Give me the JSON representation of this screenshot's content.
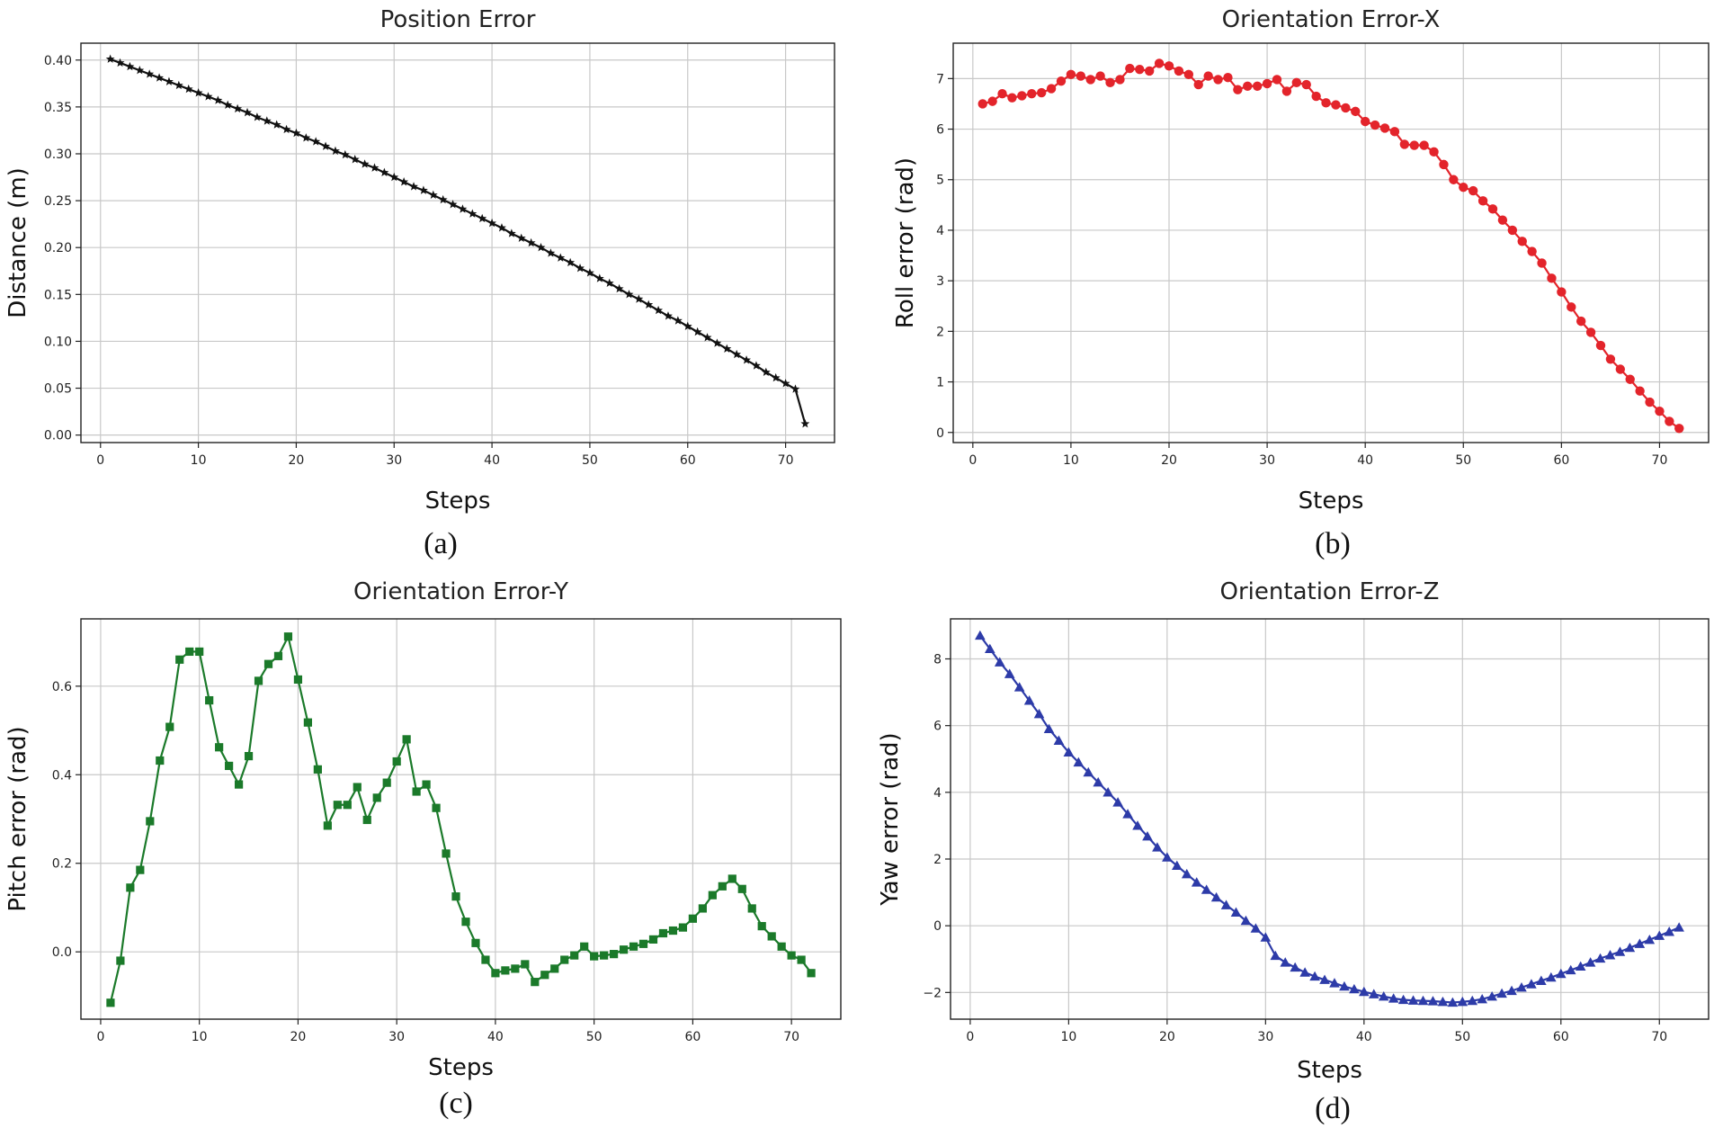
{
  "figure": {
    "captions": [
      "(a)",
      "(b)",
      "(c)",
      "(d)"
    ]
  },
  "chart_data": [
    {
      "type": "line",
      "title": "Position Error",
      "xlabel": "Steps",
      "ylabel": "Distance (m)",
      "xlim": [
        -2,
        75
      ],
      "ylim": [
        -0.008,
        0.418
      ],
      "xticks": [
        0,
        10,
        20,
        30,
        40,
        50,
        60,
        70
      ],
      "yticks": [
        0.0,
        0.05,
        0.1,
        0.15,
        0.2,
        0.25,
        0.3,
        0.35,
        0.4
      ],
      "ytick_labels": [
        "0.00",
        "0.05",
        "0.10",
        "0.15",
        "0.20",
        "0.25",
        "0.30",
        "0.35",
        "0.40"
      ],
      "grid": true,
      "color": "#111111",
      "marker": "star",
      "series": [
        {
          "x": [
            1,
            2,
            3,
            4,
            5,
            6,
            7,
            8,
            9,
            10,
            11,
            12,
            13,
            14,
            15,
            16,
            17,
            18,
            19,
            20,
            21,
            22,
            23,
            24,
            25,
            26,
            27,
            28,
            29,
            30,
            31,
            32,
            33,
            34,
            35,
            36,
            37,
            38,
            39,
            40,
            41,
            42,
            43,
            44,
            45,
            46,
            47,
            48,
            49,
            50,
            51,
            52,
            53,
            54,
            55,
            56,
            57,
            58,
            59,
            60,
            61,
            62,
            63,
            64,
            65,
            66,
            67,
            68,
            69,
            70,
            71,
            72
          ],
          "values": [
            0.401,
            0.397,
            0.393,
            0.389,
            0.385,
            0.381,
            0.377,
            0.373,
            0.369,
            0.365,
            0.361,
            0.357,
            0.352,
            0.348,
            0.344,
            0.339,
            0.335,
            0.331,
            0.326,
            0.322,
            0.317,
            0.313,
            0.308,
            0.303,
            0.299,
            0.294,
            0.289,
            0.285,
            0.28,
            0.275,
            0.27,
            0.265,
            0.261,
            0.256,
            0.251,
            0.246,
            0.241,
            0.236,
            0.231,
            0.226,
            0.221,
            0.215,
            0.21,
            0.205,
            0.2,
            0.194,
            0.189,
            0.184,
            0.178,
            0.173,
            0.167,
            0.162,
            0.156,
            0.15,
            0.145,
            0.139,
            0.133,
            0.127,
            0.122,
            0.116,
            0.11,
            0.104,
            0.098,
            0.092,
            0.086,
            0.08,
            0.074,
            0.067,
            0.061,
            0.055,
            0.049,
            0.012
          ]
        }
      ]
    },
    {
      "type": "line",
      "title": "Orientation Error-X",
      "xlabel": "Steps",
      "ylabel": "Roll error (rad)",
      "xlim": [
        -2,
        75
      ],
      "ylim": [
        -0.2,
        7.7
      ],
      "xticks": [
        0,
        10,
        20,
        30,
        40,
        50,
        60,
        70
      ],
      "yticks": [
        0,
        1,
        2,
        3,
        4,
        5,
        6,
        7
      ],
      "ytick_labels": [
        "0",
        "1",
        "2",
        "3",
        "4",
        "5",
        "6",
        "7"
      ],
      "grid": true,
      "color": "#e3242b",
      "marker": "circle",
      "series": [
        {
          "x": [
            1,
            2,
            3,
            4,
            5,
            6,
            7,
            8,
            9,
            10,
            11,
            12,
            13,
            14,
            15,
            16,
            17,
            18,
            19,
            20,
            21,
            22,
            23,
            24,
            25,
            26,
            27,
            28,
            29,
            30,
            31,
            32,
            33,
            34,
            35,
            36,
            37,
            38,
            39,
            40,
            41,
            42,
            43,
            44,
            45,
            46,
            47,
            48,
            49,
            50,
            51,
            52,
            53,
            54,
            55,
            56,
            57,
            58,
            59,
            60,
            61,
            62,
            63,
            64,
            65,
            66,
            67,
            68,
            69,
            70,
            71,
            72
          ],
          "values": [
            6.5,
            6.55,
            6.7,
            6.62,
            6.66,
            6.7,
            6.72,
            6.8,
            6.95,
            7.08,
            7.05,
            6.98,
            7.05,
            6.92,
            6.98,
            7.2,
            7.18,
            7.15,
            7.3,
            7.25,
            7.15,
            7.08,
            6.88,
            7.05,
            6.98,
            7.02,
            6.78,
            6.85,
            6.85,
            6.9,
            6.98,
            6.75,
            6.92,
            6.88,
            6.65,
            6.52,
            6.48,
            6.42,
            6.35,
            6.15,
            6.08,
            6.02,
            5.95,
            5.7,
            5.68,
            5.68,
            5.55,
            5.3,
            5.0,
            4.85,
            4.78,
            4.58,
            4.42,
            4.2,
            4.0,
            3.78,
            3.58,
            3.35,
            3.05,
            2.78,
            2.48,
            2.2,
            1.98,
            1.72,
            1.45,
            1.25,
            1.05,
            0.82,
            0.6,
            0.42,
            0.22,
            0.08
          ]
        }
      ]
    },
    {
      "type": "line",
      "title": "Orientation Error-Y",
      "xlabel": "Steps",
      "ylabel": "Pitch error (rad)",
      "xlim": [
        -2,
        75
      ],
      "ylim": [
        -0.152,
        0.752
      ],
      "xticks": [
        0,
        10,
        20,
        30,
        40,
        50,
        60,
        70
      ],
      "yticks": [
        0.0,
        0.2,
        0.4,
        0.6
      ],
      "ytick_labels": [
        "0.0",
        "0.2",
        "0.4",
        "0.6"
      ],
      "grid": true,
      "color": "#1b7a2a",
      "marker": "square",
      "series": [
        {
          "x": [
            1,
            2,
            3,
            4,
            5,
            6,
            7,
            8,
            9,
            10,
            11,
            12,
            13,
            14,
            15,
            16,
            17,
            18,
            19,
            20,
            21,
            22,
            23,
            24,
            25,
            26,
            27,
            28,
            29,
            30,
            31,
            32,
            33,
            34,
            35,
            36,
            37,
            38,
            39,
            40,
            41,
            42,
            43,
            44,
            45,
            46,
            47,
            48,
            49,
            50,
            51,
            52,
            53,
            54,
            55,
            56,
            57,
            58,
            59,
            60,
            61,
            62,
            63,
            64,
            65,
            66,
            67,
            68,
            69,
            70,
            71,
            72
          ],
          "values": [
            -0.115,
            -0.02,
            0.145,
            0.185,
            0.295,
            0.432,
            0.508,
            0.66,
            0.678,
            0.678,
            0.568,
            0.462,
            0.42,
            0.378,
            0.442,
            0.612,
            0.65,
            0.668,
            0.712,
            0.615,
            0.518,
            0.412,
            0.285,
            0.332,
            0.332,
            0.372,
            0.298,
            0.348,
            0.382,
            0.43,
            0.48,
            0.362,
            0.378,
            0.325,
            0.222,
            0.125,
            0.068,
            0.02,
            -0.018,
            -0.048,
            -0.042,
            -0.038,
            -0.028,
            -0.068,
            -0.052,
            -0.038,
            -0.018,
            -0.008,
            0.012,
            -0.01,
            -0.008,
            -0.005,
            0.005,
            0.012,
            0.018,
            0.028,
            0.042,
            0.048,
            0.055,
            0.075,
            0.098,
            0.128,
            0.148,
            0.165,
            0.142,
            0.098,
            0.058,
            0.035,
            0.012,
            -0.008,
            -0.018,
            -0.048
          ]
        }
      ]
    },
    {
      "type": "line",
      "title": "Orientation Error-Z",
      "xlabel": "Steps",
      "ylabel": "Yaw error (rad)",
      "xlim": [
        -2,
        75
      ],
      "ylim": [
        -2.8,
        9.2
      ],
      "xticks": [
        0,
        10,
        20,
        30,
        40,
        50,
        60,
        70
      ],
      "yticks": [
        -2,
        0,
        2,
        4,
        6,
        8
      ],
      "ytick_labels": [
        "−2",
        "0",
        "2",
        "4",
        "6",
        "8"
      ],
      "grid": true,
      "color": "#2d3ba8",
      "marker": "triangle",
      "series": [
        {
          "x": [
            1,
            2,
            3,
            4,
            5,
            6,
            7,
            8,
            9,
            10,
            11,
            12,
            13,
            14,
            15,
            16,
            17,
            18,
            19,
            20,
            21,
            22,
            23,
            24,
            25,
            26,
            27,
            28,
            29,
            30,
            31,
            32,
            33,
            34,
            35,
            36,
            37,
            38,
            39,
            40,
            41,
            42,
            43,
            44,
            45,
            46,
            47,
            48,
            49,
            50,
            51,
            52,
            53,
            54,
            55,
            56,
            57,
            58,
            59,
            60,
            61,
            62,
            63,
            64,
            65,
            66,
            67,
            68,
            69,
            70,
            71,
            72
          ],
          "values": [
            8.7,
            8.3,
            7.9,
            7.55,
            7.15,
            6.75,
            6.35,
            5.9,
            5.55,
            5.2,
            4.9,
            4.6,
            4.3,
            4.0,
            3.7,
            3.35,
            3.0,
            2.68,
            2.35,
            2.05,
            1.8,
            1.55,
            1.3,
            1.08,
            0.85,
            0.62,
            0.4,
            0.15,
            -0.08,
            -0.35,
            -0.9,
            -1.1,
            -1.25,
            -1.4,
            -1.52,
            -1.62,
            -1.72,
            -1.82,
            -1.9,
            -1.98,
            -2.05,
            -2.12,
            -2.18,
            -2.22,
            -2.24,
            -2.25,
            -2.26,
            -2.28,
            -2.3,
            -2.28,
            -2.25,
            -2.2,
            -2.12,
            -2.03,
            -1.95,
            -1.85,
            -1.75,
            -1.65,
            -1.55,
            -1.44,
            -1.33,
            -1.22,
            -1.1,
            -0.98,
            -0.88,
            -0.78,
            -0.66,
            -0.54,
            -0.42,
            -0.3,
            -0.18,
            -0.05
          ]
        }
      ]
    }
  ]
}
